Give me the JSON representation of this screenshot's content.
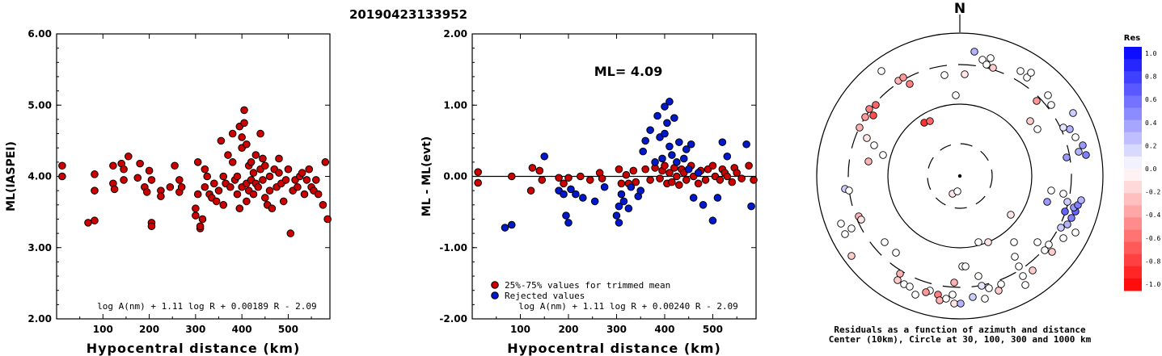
{
  "title": "20190423133952",
  "colors": {
    "kept": "#cc0000",
    "rejected": "#0018cc",
    "axis": "#000000"
  },
  "chart_data": [
    {
      "type": "scatter",
      "id": "left",
      "xlabel": "Hypocentral distance (km)",
      "ylabel": "ML(IASPEI)",
      "xlim": [
        0,
        590
      ],
      "ylim": [
        2.0,
        6.0
      ],
      "xticks": [
        "100",
        "200",
        "300",
        "400",
        "500"
      ],
      "yticks": [
        "2.00",
        "3.00",
        "4.00",
        "5.00",
        "6.00"
      ],
      "formula": "log A(nm) + 1.11 log R + 0.00189 R - 2.09",
      "series": [
        {
          "x": [
            12,
            12,
            68,
            82,
            82,
            82,
            122,
            122,
            125,
            140,
            145,
            145,
            155,
            175,
            180,
            190,
            195,
            200,
            205,
            205,
            205,
            225,
            225,
            245,
            255,
            265,
            265,
            270,
            300,
            300,
            305,
            305,
            310,
            310,
            315,
            320,
            320,
            325,
            330,
            335,
            340,
            345,
            350,
            355,
            360,
            360,
            365,
            370,
            375,
            380,
            380,
            385,
            390,
            390,
            395,
            395,
            400,
            400,
            400,
            405,
            405,
            410,
            410,
            410,
            415,
            415,
            420,
            420,
            425,
            425,
            430,
            430,
            435,
            440,
            440,
            445,
            445,
            450,
            450,
            455,
            460,
            460,
            465,
            470,
            475,
            480,
            480,
            485,
            490,
            495,
            500,
            505,
            510,
            515,
            520,
            525,
            530,
            535,
            540,
            545,
            550,
            555,
            560,
            565,
            575,
            580,
            585
          ],
          "y": [
            4.15,
            4.0,
            3.35,
            3.38,
            4.03,
            3.8,
            4.15,
            3.9,
            3.82,
            4.18,
            4.1,
            3.95,
            4.28,
            3.98,
            4.18,
            3.85,
            3.78,
            4.08,
            3.35,
            3.3,
            3.95,
            3.8,
            3.72,
            3.85,
            4.15,
            3.78,
            3.95,
            3.85,
            3.45,
            3.55,
            4.2,
            3.75,
            3.27,
            3.3,
            3.4,
            4.1,
            3.85,
            4.0,
            3.75,
            3.7,
            3.9,
            3.65,
            3.8,
            4.5,
            4.0,
            3.6,
            3.9,
            4.3,
            3.85,
            4.6,
            4.2,
            3.95,
            4.0,
            3.75,
            4.7,
            3.55,
            4.55,
            4.4,
            3.85,
            4.93,
            4.75,
            4.45,
            3.9,
            3.65,
            4.15,
            3.8,
            4.2,
            3.95,
            4.05,
            3.75,
            4.3,
            3.9,
            3.85,
            4.6,
            4.1,
            4.25,
            3.95,
            3.7,
            4.15,
            3.6,
            4.0,
            3.8,
            3.55,
            4.1,
            3.85,
            4.25,
            4.05,
            3.9,
            3.65,
            3.95,
            4.1,
            3.2,
            3.8,
            3.95,
            3.85,
            4.0,
            4.05,
            3.75,
            3.95,
            4.1,
            3.85,
            3.8,
            3.95,
            3.75,
            3.6,
            4.2,
            3.4
          ]
        }
      ]
    },
    {
      "type": "scatter",
      "id": "middle",
      "xlabel": "Hypocentral distance (km)",
      "ylabel": "ML - ML(evt)",
      "xlim": [
        0,
        590
      ],
      "ylim": [
        -2.0,
        2.0
      ],
      "xticks": [
        "100",
        "200",
        "300",
        "400",
        "500"
      ],
      "yticks": [
        "-2.00",
        "-1.00",
        "0.00",
        "1.00",
        "2.00"
      ],
      "annotation": "ML= 4.09",
      "formula": "log A(nm) + 1.11 log R + 0.00240 R - 2.09",
      "legend": [
        "25%-75% values for trimmed mean",
        "Rejected values"
      ],
      "series": [
        {
          "name": "25%-75% values for trimmed mean",
          "x": [
            12,
            12,
            82,
            122,
            125,
            140,
            145,
            180,
            190,
            200,
            225,
            245,
            265,
            270,
            305,
            310,
            320,
            325,
            335,
            340,
            360,
            370,
            380,
            390,
            395,
            400,
            405,
            410,
            415,
            420,
            425,
            430,
            435,
            440,
            445,
            455,
            460,
            470,
            475,
            485,
            490,
            500,
            505,
            515,
            520,
            525,
            530,
            540,
            545,
            550,
            560,
            575,
            585
          ],
          "y": [
            0.06,
            -0.09,
            0.0,
            -0.2,
            0.12,
            0.08,
            -0.05,
            -0.02,
            -0.1,
            -0.02,
            0.0,
            -0.05,
            0.05,
            -0.03,
            0.1,
            -0.1,
            0.02,
            -0.1,
            0.08,
            -0.08,
            0.1,
            -0.05,
            0.12,
            -0.03,
            0.08,
            0.15,
            -0.1,
            0.05,
            -0.08,
            0.12,
            0.0,
            -0.12,
            0.1,
            0.05,
            -0.05,
            0.15,
            0.0,
            -0.1,
            0.08,
            -0.05,
            0.1,
            0.15,
            0.0,
            -0.05,
            0.1,
            0.05,
            0.0,
            -0.08,
            0.12,
            0.05,
            -0.03,
            0.15,
            -0.05
          ]
        },
        {
          "name": "Rejected values",
          "x": [
            68,
            82,
            150,
            180,
            190,
            195,
            200,
            205,
            215,
            230,
            255,
            275,
            300,
            305,
            305,
            310,
            315,
            325,
            330,
            345,
            350,
            355,
            360,
            370,
            380,
            385,
            390,
            395,
            400,
            400,
            405,
            410,
            410,
            415,
            420,
            425,
            430,
            440,
            445,
            450,
            455,
            460,
            470,
            480,
            500,
            510,
            520,
            530,
            570,
            580
          ],
          "y": [
            -0.72,
            -0.68,
            0.28,
            -0.2,
            -0.25,
            -0.55,
            -0.65,
            -0.18,
            -0.25,
            -0.3,
            -0.35,
            -0.15,
            -0.55,
            -0.65,
            -0.42,
            -0.25,
            -0.35,
            -0.45,
            -0.15,
            -0.28,
            -0.2,
            0.35,
            0.5,
            0.65,
            0.2,
            0.85,
            0.55,
            0.25,
            0.98,
            0.6,
            0.75,
            1.05,
            0.42,
            0.3,
            0.82,
            0.2,
            0.48,
            0.25,
            0.38,
            0.1,
            0.45,
            -0.3,
            0.05,
            -0.4,
            -0.62,
            -0.3,
            0.48,
            0.28,
            0.45,
            -0.42
          ]
        }
      ]
    },
    {
      "type": "polar-scatter",
      "id": "right",
      "north_label": "N",
      "caption": [
        "Residuals as a function of azimuth and distance",
        "Center (10km), Circle at 30, 100, 300 and 1000 km"
      ],
      "colorbar": {
        "title": "Res",
        "ticks": [
          "1.0",
          "0.8",
          "0.6",
          "0.4",
          "0.2",
          "0.0",
          "-0.2",
          "-0.4",
          "-0.6",
          "-0.8",
          "-1.0"
        ]
      }
    }
  ]
}
